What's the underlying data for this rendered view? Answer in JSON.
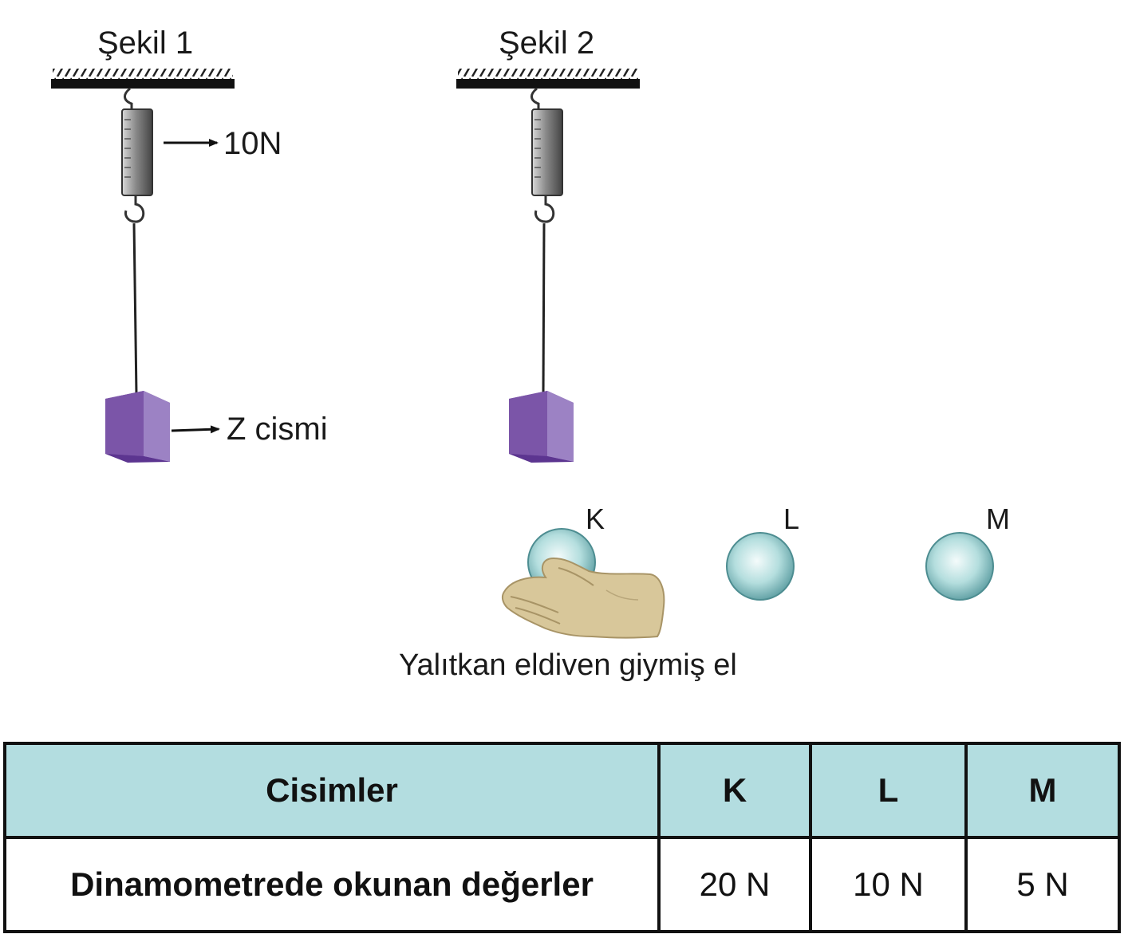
{
  "figure1": {
    "title": "Şekil 1",
    "spring_reading": "10N",
    "object_label": "Z cismi"
  },
  "figure2": {
    "title": "Şekil 2"
  },
  "spheres": [
    {
      "name": "K"
    },
    {
      "name": "L"
    },
    {
      "name": "M"
    }
  ],
  "hand_caption": "Yalıtkan eldiven giymiş el",
  "table": {
    "header": {
      "label": "Cisimler",
      "cols": [
        "K",
        "L",
        "M"
      ]
    },
    "row": {
      "label": "Dinamometrede okunan değerler",
      "values": [
        "20 N",
        "10 N",
        "5 N"
      ]
    }
  },
  "colors": {
    "header_bg": "#b3dde0",
    "block": "#7b55a8",
    "sphere": "#8ecfd0"
  }
}
